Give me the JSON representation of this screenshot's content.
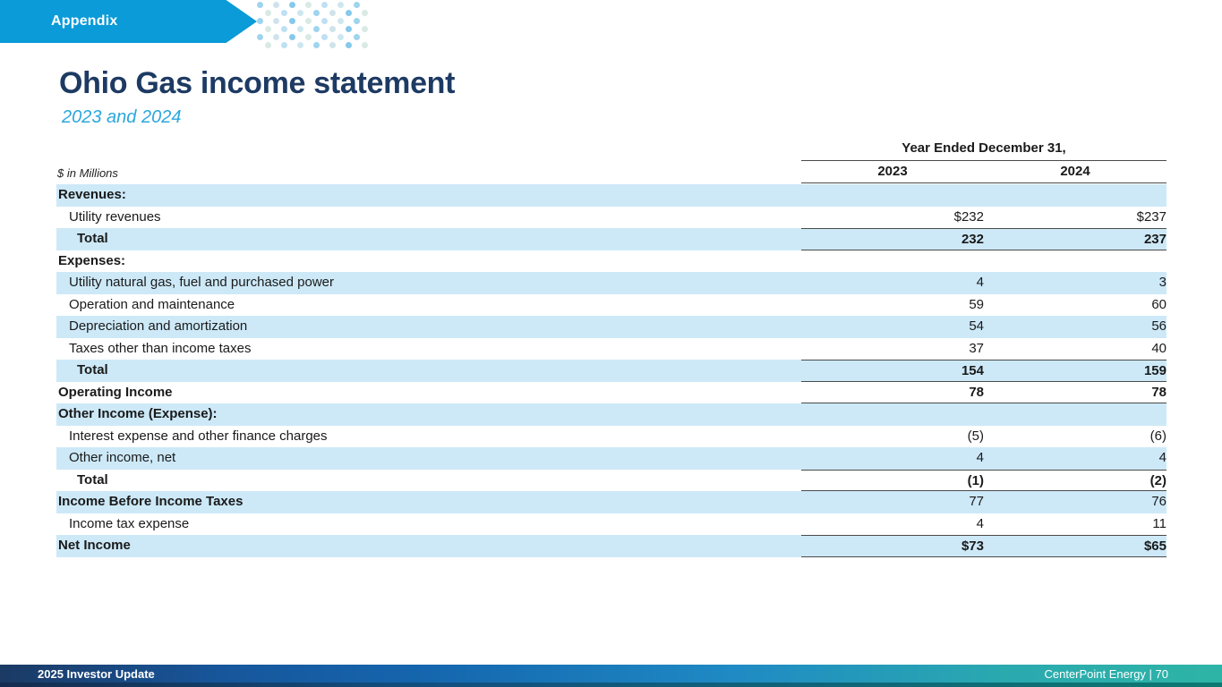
{
  "banner": {
    "label": "Appendix"
  },
  "header": {
    "title": "Ohio Gas income statement",
    "subtitle": "2023 and 2024"
  },
  "table": {
    "units_note": "$ in Millions",
    "period_header": "Year Ended December 31,",
    "columns": [
      "2023",
      "2024"
    ],
    "rows": [
      {
        "label": "Revenues:",
        "v2023": "",
        "v2024": "",
        "style": "section",
        "shade": true,
        "top_rule": false,
        "bottom_rule": false,
        "bold_values": false
      },
      {
        "label": "Utility revenues",
        "v2023": "$232",
        "v2024": "$237",
        "style": "item",
        "shade": false,
        "top_rule": false,
        "bottom_rule": false,
        "bold_values": false
      },
      {
        "label": "Total",
        "v2023": "232",
        "v2024": "237",
        "style": "total",
        "shade": true,
        "top_rule": true,
        "bottom_rule": true,
        "bold_values": true
      },
      {
        "label": "Expenses:",
        "v2023": "",
        "v2024": "",
        "style": "section",
        "shade": false,
        "top_rule": false,
        "bottom_rule": false,
        "bold_values": false
      },
      {
        "label": "Utility natural gas, fuel and purchased power",
        "v2023": "4",
        "v2024": "3",
        "style": "item",
        "shade": true,
        "top_rule": false,
        "bottom_rule": false,
        "bold_values": false
      },
      {
        "label": "Operation and maintenance",
        "v2023": "59",
        "v2024": "60",
        "style": "item",
        "shade": false,
        "top_rule": false,
        "bottom_rule": false,
        "bold_values": false
      },
      {
        "label": "Depreciation and amortization",
        "v2023": "54",
        "v2024": "56",
        "style": "item",
        "shade": true,
        "top_rule": false,
        "bottom_rule": false,
        "bold_values": false
      },
      {
        "label": "Taxes other than income taxes",
        "v2023": "37",
        "v2024": "40",
        "style": "item",
        "shade": false,
        "top_rule": false,
        "bottom_rule": false,
        "bold_values": false
      },
      {
        "label": "Total",
        "v2023": "154",
        "v2024": "159",
        "style": "total",
        "shade": true,
        "top_rule": true,
        "bottom_rule": true,
        "bold_values": true
      },
      {
        "label": "Operating Income",
        "v2023": "78",
        "v2024": "78",
        "style": "section",
        "shade": false,
        "top_rule": false,
        "bottom_rule": true,
        "bold_values": true
      },
      {
        "label": "Other Income (Expense):",
        "v2023": "",
        "v2024": "",
        "style": "section",
        "shade": true,
        "top_rule": false,
        "bottom_rule": false,
        "bold_values": false
      },
      {
        "label": "Interest expense and other finance charges",
        "v2023": "(5)",
        "v2024": "(6)",
        "style": "item",
        "shade": false,
        "top_rule": false,
        "bottom_rule": false,
        "bold_values": false
      },
      {
        "label": "Other income, net",
        "v2023": "4",
        "v2024": "4",
        "style": "item",
        "shade": true,
        "top_rule": false,
        "bottom_rule": false,
        "bold_values": false
      },
      {
        "label": "Total",
        "v2023": "(1)",
        "v2024": "(2)",
        "style": "total",
        "shade": false,
        "top_rule": true,
        "bottom_rule": true,
        "bold_values": true
      },
      {
        "label": "Income Before Income Taxes",
        "v2023": "77",
        "v2024": "76",
        "style": "section",
        "shade": true,
        "top_rule": false,
        "bottom_rule": false,
        "bold_values": false
      },
      {
        "label": "Income tax expense",
        "v2023": "4",
        "v2024": "11",
        "style": "item",
        "shade": false,
        "top_rule": false,
        "bottom_rule": false,
        "bold_values": false
      },
      {
        "label": "Net Income",
        "v2023": "$73",
        "v2024": "$65",
        "style": "section",
        "shade": true,
        "top_rule": true,
        "bottom_rule": true,
        "bold_values": true
      }
    ]
  },
  "footer": {
    "left": "2025 Investor Update",
    "right": "CenterPoint Energy | 70"
  },
  "colors": {
    "accent": "#0a9bd8",
    "title_navy": "#1d3a63",
    "subtitle_blue": "#2ba7de",
    "row_shade": "#cde9f8",
    "rule": "#4a4a4a",
    "footer_gradient_start": "#1b3a64",
    "footer_gradient_mid": "#1f8ac4",
    "footer_gradient_end": "#2eb4a6"
  }
}
